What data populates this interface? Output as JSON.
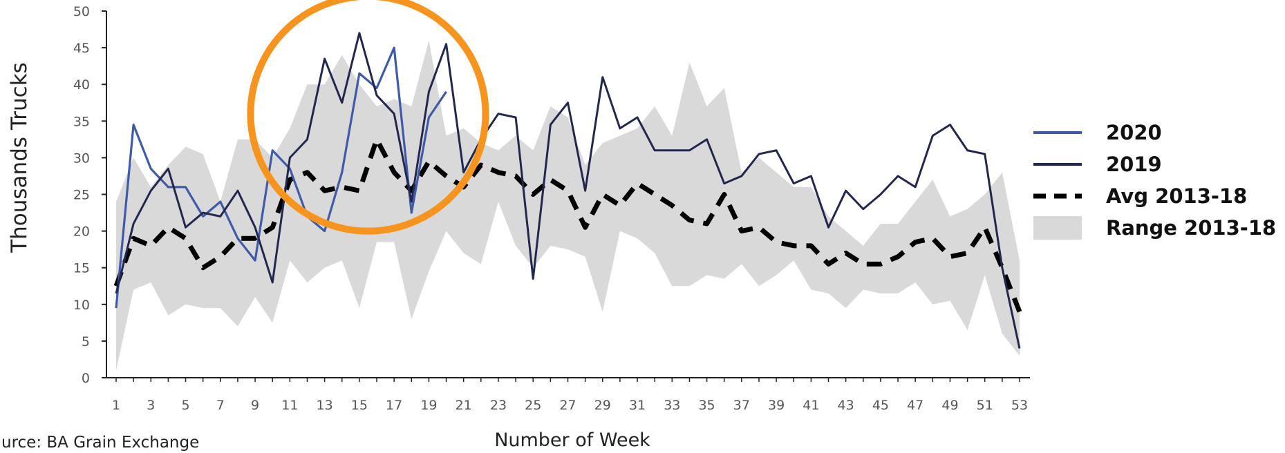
{
  "chart_data": {
    "type": "line",
    "xlabel": "Number of Week",
    "ylabel": "Thousands Trucks",
    "source": "urce: BA Grain Exchange",
    "xlim": [
      1,
      53
    ],
    "ylim": [
      0,
      50
    ],
    "yticks": [
      0,
      5,
      10,
      15,
      20,
      25,
      30,
      35,
      40,
      45,
      50
    ],
    "xticks": [
      1,
      3,
      5,
      7,
      9,
      11,
      13,
      15,
      17,
      19,
      21,
      23,
      25,
      27,
      29,
      31,
      33,
      35,
      37,
      39,
      41,
      43,
      45,
      47,
      49,
      51,
      53
    ],
    "legend_position": "right",
    "highlight": {
      "shape": "circle",
      "color": "#F7941D",
      "center_week": 15.5,
      "center_value": 36,
      "description_visible": false
    },
    "series": [
      {
        "name": "Range 2013-18",
        "kind": "range",
        "color": "#D9D9D9",
        "x": [
          1,
          2,
          3,
          4,
          5,
          6,
          7,
          8,
          9,
          10,
          11,
          12,
          13,
          14,
          15,
          16,
          17,
          18,
          19,
          20,
          21,
          22,
          23,
          24,
          25,
          26,
          27,
          28,
          29,
          30,
          31,
          32,
          33,
          34,
          35,
          36,
          37,
          38,
          39,
          40,
          41,
          42,
          43,
          44,
          45,
          46,
          47,
          48,
          49,
          50,
          51,
          52,
          53
        ],
        "upper": [
          24,
          30,
          26,
          29,
          31.5,
          30.5,
          24,
          32.5,
          32.5,
          30,
          34,
          40,
          40,
          44,
          40,
          37,
          38,
          37,
          46,
          33,
          34,
          32,
          31,
          33,
          31,
          37,
          35.5,
          29,
          32,
          33,
          34,
          37,
          33,
          43,
          37,
          39.5,
          28,
          30,
          28,
          26,
          26,
          22,
          20,
          18,
          21,
          21,
          24,
          27,
          22,
          23,
          25,
          28,
          16
        ],
        "lower": [
          1,
          12,
          13,
          8.5,
          10,
          9.5,
          9.5,
          7,
          11,
          7.5,
          16,
          13,
          15,
          16,
          9.5,
          18.5,
          18.5,
          8,
          14.5,
          20,
          17,
          15.5,
          24,
          18,
          15,
          18,
          17.5,
          16.5,
          9,
          20,
          19,
          17,
          12.5,
          12.5,
          14,
          13.5,
          15.5,
          12.5,
          14,
          16,
          12,
          11.5,
          9.5,
          12,
          11.5,
          11.5,
          13,
          10,
          10.5,
          6.5,
          14,
          6,
          3
        ]
      },
      {
        "name": "2020",
        "color": "#3E5BA9",
        "x": [
          1,
          2,
          3,
          4,
          5,
          6,
          7,
          8,
          9,
          10,
          11,
          12,
          13,
          14,
          15,
          16,
          17,
          18,
          19,
          20
        ],
        "values": [
          9.5,
          34.5,
          28.5,
          26,
          26,
          22,
          24,
          19,
          16,
          31,
          28.5,
          22,
          20,
          28,
          41.5,
          39.5,
          45,
          22.5,
          35.5,
          39
        ]
      },
      {
        "name": "2019",
        "color": "#22274F",
        "x": [
          1,
          2,
          3,
          4,
          5,
          6,
          7,
          8,
          9,
          10,
          11,
          12,
          13,
          14,
          15,
          16,
          17,
          18,
          19,
          20,
          21,
          22,
          23,
          24,
          25,
          26,
          27,
          28,
          29,
          30,
          31,
          32,
          33,
          34,
          35,
          36,
          37,
          38,
          39,
          40,
          41,
          42,
          43,
          44,
          45,
          46,
          47,
          48,
          49,
          50,
          51,
          52,
          53
        ],
        "values": [
          11.5,
          21,
          25.5,
          28.5,
          20.5,
          22.5,
          22,
          25.5,
          20.5,
          13,
          30,
          32.5,
          43.5,
          37.5,
          47,
          38.5,
          36,
          24,
          39,
          45.5,
          28,
          32.5,
          36,
          35.5,
          13.5,
          34.5,
          37.5,
          25.5,
          41,
          34,
          35.5,
          31,
          31,
          31,
          32.5,
          26.5,
          27.5,
          30.5,
          31,
          26.5,
          27.5,
          20.5,
          25.5,
          23,
          25,
          27.5,
          26,
          33,
          34.5,
          31,
          30.5,
          15,
          4
        ]
      },
      {
        "name": "Avg 2013-18",
        "color": "#000000",
        "dashed": true,
        "x": [
          1,
          2,
          3,
          4,
          5,
          6,
          7,
          8,
          9,
          10,
          11,
          12,
          13,
          14,
          15,
          16,
          17,
          18,
          19,
          20,
          21,
          22,
          23,
          24,
          25,
          26,
          27,
          28,
          29,
          30,
          31,
          32,
          33,
          34,
          35,
          36,
          37,
          38,
          39,
          40,
          41,
          42,
          43,
          44,
          45,
          46,
          47,
          48,
          49,
          50,
          51,
          52,
          53
        ],
        "values": [
          12.5,
          19,
          18,
          20.5,
          19,
          15,
          16.5,
          19,
          19,
          20.5,
          27,
          28,
          25.5,
          26,
          25.5,
          32.5,
          28,
          25.5,
          29.5,
          27.5,
          26,
          29,
          28,
          27.5,
          25,
          27,
          25.5,
          20.5,
          25,
          23.5,
          26.5,
          25,
          23.5,
          21.5,
          21,
          25,
          20,
          20.5,
          18.5,
          18,
          18,
          15.5,
          17,
          15.5,
          15.5,
          16.5,
          18.5,
          19,
          16.5,
          17,
          20.5,
          15,
          9
        ]
      }
    ]
  }
}
